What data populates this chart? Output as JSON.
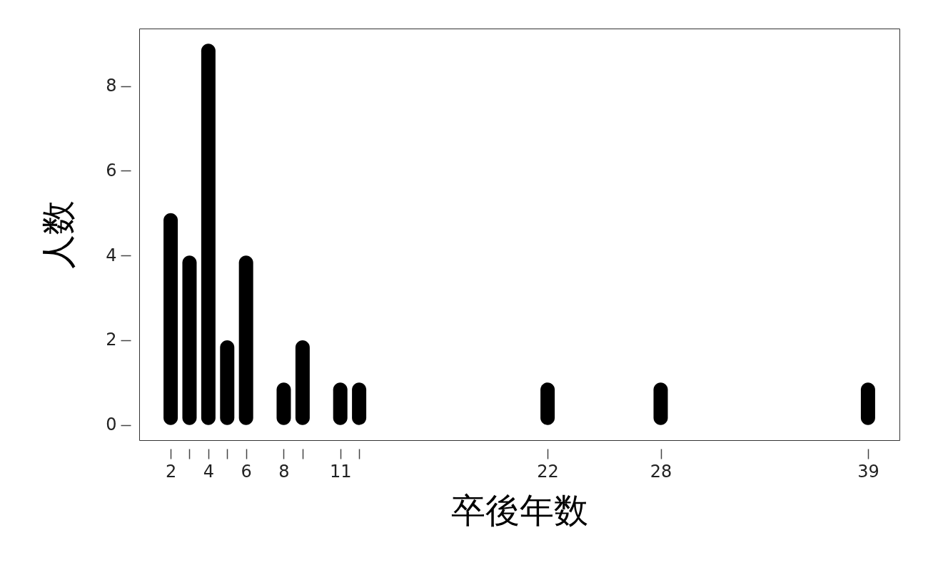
{
  "chart_data": {
    "type": "bar",
    "xlabel": "卒後年数",
    "ylabel": "人数",
    "x": [
      2,
      3,
      4,
      5,
      6,
      8,
      9,
      11,
      12,
      22,
      28,
      39
    ],
    "values": [
      5,
      4,
      9,
      2,
      4,
      1,
      2,
      1,
      1,
      1,
      1,
      1
    ],
    "color": "#000000",
    "xlim": [
      0.52,
      40.48
    ],
    "xticks": [
      2,
      {
        "value": 3,
        "label": null
      },
      4,
      {
        "value": 5,
        "label": null
      },
      6,
      8,
      {
        "value": 9,
        "label": null
      },
      11,
      {
        "value": 12,
        "label": null
      },
      22,
      28,
      39
    ],
    "ylim": [
      -0.36,
      9.36
    ],
    "yticks": [
      0,
      2,
      4,
      6,
      8
    ],
    "grid": false
  }
}
